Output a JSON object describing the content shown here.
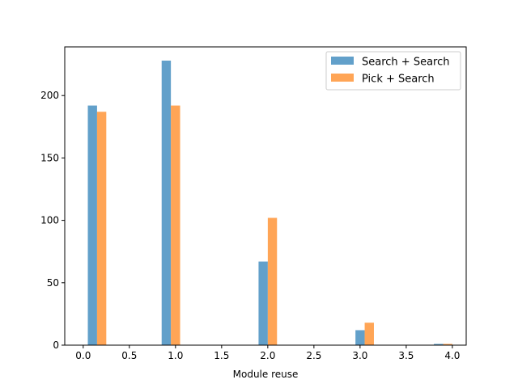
{
  "chart_data": {
    "type": "bar",
    "xlabel": "Module reuse",
    "ylabel": "",
    "xlim": [
      -0.2,
      4.15
    ],
    "ylim": [
      0,
      239
    ],
    "x_ticks": [
      "0.0",
      "0.5",
      "1.0",
      "1.5",
      "2.0",
      "2.5",
      "3.0",
      "3.5",
      "4.0"
    ],
    "y_ticks": [
      "0",
      "50",
      "100",
      "150",
      "200"
    ],
    "bar_width": 0.1,
    "grid": false,
    "legend_position": "upper right",
    "series": [
      {
        "name": "Search + Search",
        "color": "#1f77b4",
        "opacity": 0.7,
        "bins": [
          {
            "x0": 0.05,
            "x1": 0.15,
            "value": 192
          },
          {
            "x0": 0.85,
            "x1": 0.95,
            "value": 228
          },
          {
            "x0": 1.9,
            "x1": 2.0,
            "value": 67
          },
          {
            "x0": 2.95,
            "x1": 3.05,
            "value": 12
          },
          {
            "x0": 3.8,
            "x1": 3.9,
            "value": 1
          }
        ]
      },
      {
        "name": "Pick + Search",
        "color": "#ff7f0e",
        "opacity": 0.7,
        "bins": [
          {
            "x0": 0.15,
            "x1": 0.25,
            "value": 187
          },
          {
            "x0": 0.95,
            "x1": 1.05,
            "value": 192
          },
          {
            "x0": 2.0,
            "x1": 2.1,
            "value": 102
          },
          {
            "x0": 3.05,
            "x1": 3.15,
            "value": 18
          },
          {
            "x0": 3.9,
            "x1": 4.0,
            "value": 1
          }
        ]
      }
    ]
  }
}
